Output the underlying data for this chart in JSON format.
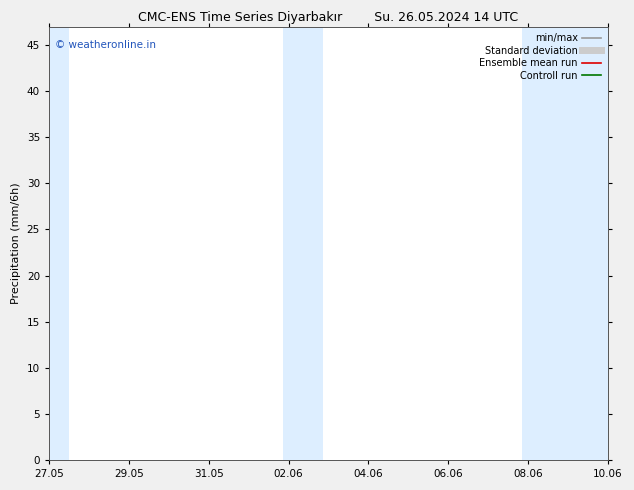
{
  "title_left": "CMC-ENS Time Series Diyarbakır",
  "title_right": "Su. 26.05.2024 14 UTC",
  "ylabel": "Precipitation (mm/6h)",
  "xlabel": "",
  "background_color": "#f0f0f0",
  "plot_bg_color": "#ffffff",
  "ylim": [
    0,
    47
  ],
  "yticks": [
    0,
    5,
    10,
    15,
    20,
    25,
    30,
    35,
    40,
    45
  ],
  "xtick_labels": [
    "27.05",
    "29.05",
    "31.05",
    "02.06",
    "04.06",
    "06.06",
    "08.06",
    "10.06"
  ],
  "xtick_positions": [
    0,
    2,
    4,
    6,
    8,
    10,
    12,
    14
  ],
  "x_start": 0,
  "x_end": 14,
  "shaded_bands": [
    {
      "x_start": -0.1,
      "x_end": 0.5,
      "color": "#ddeeff"
    },
    {
      "x_start": 5.85,
      "x_end": 6.85,
      "color": "#ddeeff"
    },
    {
      "x_start": 11.85,
      "x_end": 12.85,
      "color": "#ddeeff"
    },
    {
      "x_start": 12.85,
      "x_end": 14.1,
      "color": "#ddeeff"
    }
  ],
  "legend_items": [
    {
      "label": "min/max",
      "color": "#999999",
      "linestyle": "-",
      "linewidth": 1.2
    },
    {
      "label": "Standard deviation",
      "color": "#cccccc",
      "linestyle": "-",
      "linewidth": 5
    },
    {
      "label": "Ensemble mean run",
      "color": "#dd0000",
      "linestyle": "-",
      "linewidth": 1.2
    },
    {
      "label": "Controll run",
      "color": "#007700",
      "linestyle": "-",
      "linewidth": 1.2
    }
  ],
  "watermark_text": "© weatheronline.in",
  "watermark_color": "#2255bb",
  "title_fontsize": 9,
  "ylabel_fontsize": 8,
  "tick_fontsize": 7.5,
  "legend_fontsize": 7,
  "watermark_fontsize": 7.5
}
